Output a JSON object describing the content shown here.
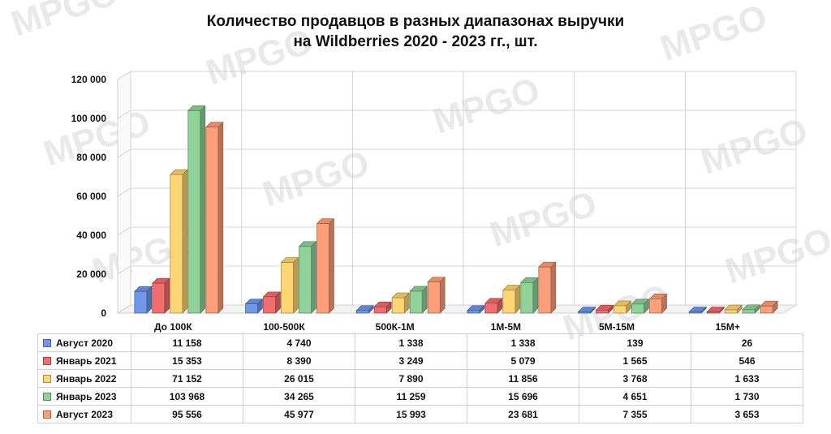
{
  "chart_data": {
    "type": "bar",
    "title": [
      "Количество продавцов в разных диапазонах выручки",
      "на Wildberries 2020 - 2023 гг., шт."
    ],
    "categories": [
      "До 100К",
      "100-500К",
      "500К-1М",
      "1М-5М",
      "5М-15М",
      "15М+"
    ],
    "ylim": [
      0,
      120000
    ],
    "yticks": [
      "0",
      "20 000",
      "40 000",
      "60 000",
      "80 000",
      "100 000",
      "120 000"
    ],
    "ytick_values": [
      0,
      20000,
      40000,
      60000,
      80000,
      100000,
      120000
    ],
    "grid": true,
    "legend": "data-table",
    "series": [
      {
        "name": "Август 2020",
        "color": "#6f97ea",
        "values": [
          11158,
          4740,
          1338,
          1338,
          139,
          26
        ],
        "labels": [
          "11 158",
          "4 740",
          "1 338",
          "1 338",
          "139",
          "26"
        ]
      },
      {
        "name": "Январь 2021",
        "color": "#f26d6d",
        "values": [
          15353,
          8390,
          3249,
          5079,
          1565,
          546
        ],
        "labels": [
          "15 353",
          "8 390",
          "3 249",
          "5 079",
          "1 565",
          "546"
        ]
      },
      {
        "name": "Январь 2022",
        "color": "#ffd673",
        "values": [
          71152,
          26015,
          7890,
          11856,
          3768,
          1633
        ],
        "labels": [
          "71 152",
          "26 015",
          "7 890",
          "11 856",
          "3 768",
          "1 633"
        ]
      },
      {
        "name": "Январь 2023",
        "color": "#8fd39a",
        "values": [
          103968,
          34265,
          11259,
          15696,
          4651,
          1730
        ],
        "labels": [
          "103 968",
          "34 265",
          "11 259",
          "15 696",
          "4 651",
          "1 730"
        ]
      },
      {
        "name": "Август 2023",
        "color": "#ff9e7a",
        "values": [
          95556,
          45977,
          15993,
          23681,
          7355,
          3653
        ],
        "labels": [
          "95 556",
          "45 977",
          "15 993",
          "23 681",
          "7 355",
          "3 653"
        ]
      }
    ]
  },
  "watermark": "MPGO"
}
